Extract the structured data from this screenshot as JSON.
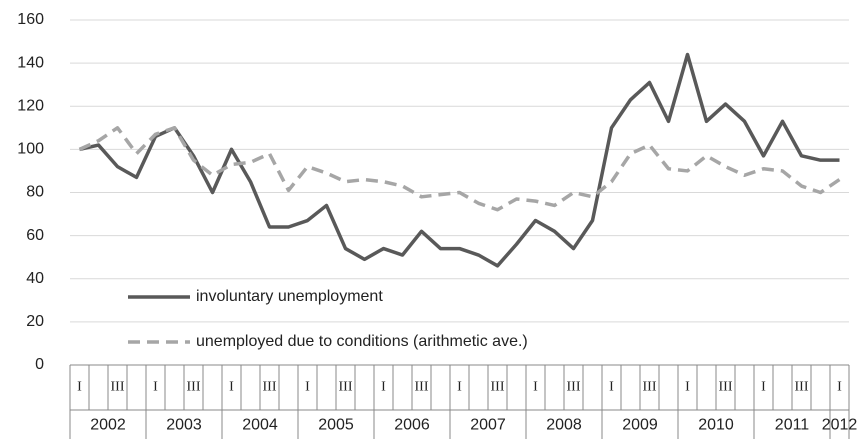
{
  "chart_data": {
    "type": "line",
    "categories": [
      "I",
      null,
      "III",
      null,
      "I",
      null,
      "III",
      null,
      "I",
      null,
      "III",
      null,
      "I",
      null,
      "III",
      null,
      "I",
      null,
      "III",
      null,
      "I",
      null,
      "III",
      null,
      "I",
      null,
      "III",
      null,
      "I",
      null,
      "III",
      null,
      "I",
      null,
      "III",
      null,
      "I",
      null,
      "III",
      null,
      "I"
    ],
    "years": [
      "2002",
      "2003",
      "2004",
      "2005",
      "2006",
      "2007",
      "2008",
      "2009",
      "2010",
      "2011",
      "2012"
    ],
    "series": [
      {
        "name": "involuntary unemployment",
        "color": "#595959",
        "dash": "solid",
        "values": [
          100,
          102,
          92,
          87,
          106,
          110,
          97,
          80,
          100,
          85,
          64,
          64,
          67,
          74,
          54,
          49,
          54,
          51,
          62,
          54,
          54,
          51,
          46,
          56,
          67,
          62,
          54,
          67,
          110,
          123,
          131,
          113,
          144,
          113,
          121,
          113,
          97,
          113,
          97,
          95,
          95
        ]
      },
      {
        "name": "unemployed due to conditions (arithmetic ave.)",
        "color": "#a6a6a6",
        "dash": "dashed",
        "values": [
          100,
          104,
          110,
          98,
          107,
          110,
          95,
          88,
          93,
          94,
          98,
          81,
          92,
          89,
          85,
          86,
          85,
          83,
          78,
          79,
          80,
          75,
          72,
          77,
          76,
          74,
          80,
          78,
          85,
          98,
          102,
          91,
          90,
          97,
          92,
          88,
          91,
          90,
          83,
          80,
          86
        ]
      }
    ],
    "ylim": [
      0,
      160
    ],
    "yticks": [
      0,
      20,
      40,
      60,
      80,
      100,
      120,
      140,
      160
    ],
    "grid": true,
    "legend": "lower-left"
  }
}
